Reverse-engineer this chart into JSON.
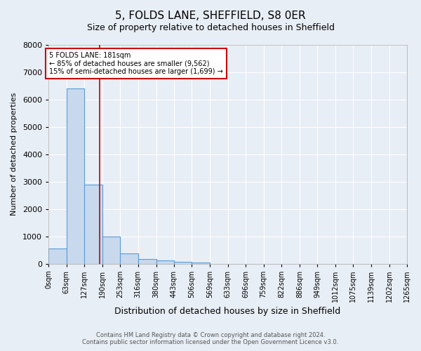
{
  "title": "5, FOLDS LANE, SHEFFIELD, S8 0ER",
  "subtitle": "Size of property relative to detached houses in Sheffield",
  "xlabel": "Distribution of detached houses by size in Sheffield",
  "ylabel": "Number of detached properties",
  "bin_edges": [
    0,
    63,
    127,
    190,
    253,
    316,
    380,
    443,
    506,
    569,
    633,
    696,
    759,
    822,
    886,
    949,
    1012,
    1075,
    1139,
    1202,
    1265
  ],
  "bin_labels": [
    "0sqm",
    "63sqm",
    "127sqm",
    "190sqm",
    "253sqm",
    "316sqm",
    "380sqm",
    "443sqm",
    "506sqm",
    "569sqm",
    "633sqm",
    "696sqm",
    "759sqm",
    "822sqm",
    "886sqm",
    "949sqm",
    "1012sqm",
    "1075sqm",
    "1139sqm",
    "1202sqm",
    "1265sqm"
  ],
  "counts": [
    550,
    6400,
    2900,
    1000,
    380,
    170,
    120,
    75,
    50,
    0,
    0,
    0,
    0,
    0,
    0,
    0,
    0,
    0,
    0,
    0
  ],
  "bar_color": "#c8d9ed",
  "bar_edge_color": "#5b9bd5",
  "red_line_x": 181,
  "red_line_color": "#cc0000",
  "annotation_line1": "5 FOLDS LANE: 181sqm",
  "annotation_line2": "← 85% of detached houses are smaller (9,562)",
  "annotation_line3": "15% of semi-detached houses are larger (1,699) →",
  "annotation_box_color": "#ffffff",
  "annotation_box_edge": "#cc0000",
  "ylim": [
    0,
    8000
  ],
  "yticks": [
    0,
    1000,
    2000,
    3000,
    4000,
    5000,
    6000,
    7000,
    8000
  ],
  "background_color": "#e8eef5",
  "footer_line1": "Contains HM Land Registry data © Crown copyright and database right 2024.",
  "footer_line2": "Contains public sector information licensed under the Open Government Licence v3.0.",
  "title_fontsize": 11,
  "subtitle_fontsize": 9,
  "xlabel_fontsize": 9,
  "ylabel_fontsize": 8,
  "tick_fontsize": 7,
  "annotation_fontsize": 7,
  "footer_fontsize": 6
}
